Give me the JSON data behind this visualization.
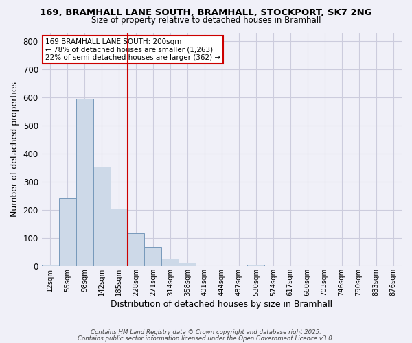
{
  "title1": "169, BRAMHALL LANE SOUTH, BRAMHALL, STOCKPORT, SK7 2NG",
  "title2": "Size of property relative to detached houses in Bramhall",
  "xlabel": "Distribution of detached houses by size in Bramhall",
  "ylabel": "Number of detached properties",
  "bin_labels": [
    "12sqm",
    "55sqm",
    "98sqm",
    "142sqm",
    "185sqm",
    "228sqm",
    "271sqm",
    "314sqm",
    "358sqm",
    "401sqm",
    "444sqm",
    "487sqm",
    "530sqm",
    "574sqm",
    "617sqm",
    "660sqm",
    "703sqm",
    "746sqm",
    "790sqm",
    "833sqm",
    "876sqm"
  ],
  "bar_heights": [
    5,
    242,
    595,
    355,
    205,
    118,
    68,
    28,
    14,
    0,
    0,
    0,
    5,
    0,
    0,
    0,
    0,
    0,
    0,
    0,
    0
  ],
  "bar_color": "#cdd9e8",
  "bar_edge_color": "#7799bb",
  "vline_x_index": 4.5,
  "vline_color": "#cc0000",
  "ylim": [
    0,
    830
  ],
  "yticks": [
    0,
    100,
    200,
    300,
    400,
    500,
    600,
    700,
    800
  ],
  "annotation_title": "169 BRAMHALL LANE SOUTH: 200sqm",
  "annotation_line1": "← 78% of detached houses are smaller (1,263)",
  "annotation_line2": "22% of semi-detached houses are larger (362) →",
  "annotation_box_color": "#ffffff",
  "annotation_box_edge": "#cc0000",
  "footer1": "Contains HM Land Registry data © Crown copyright and database right 2025.",
  "footer2": "Contains public sector information licensed under the Open Government Licence v3.0.",
  "background_color": "#f0f0f8",
  "grid_color": "#ccccdd"
}
